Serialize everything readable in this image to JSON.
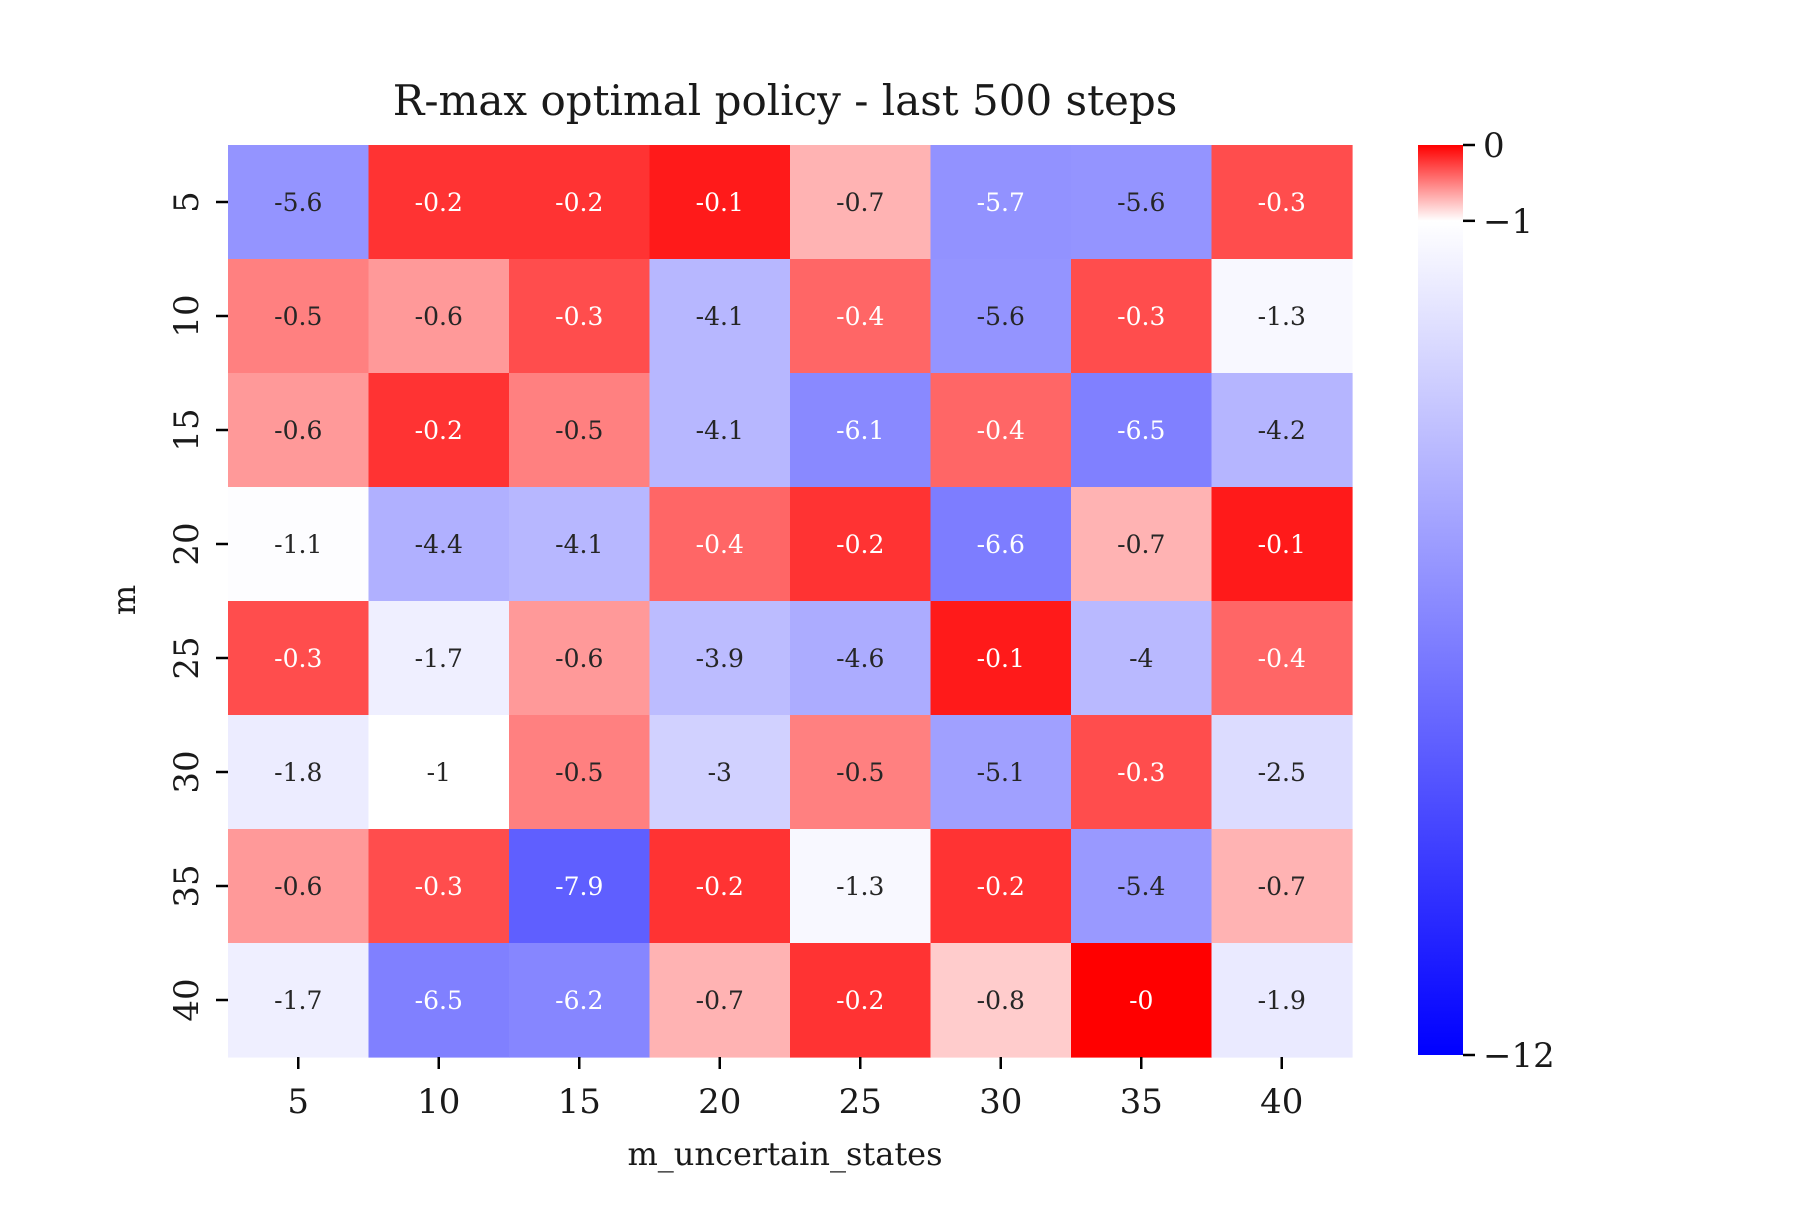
{
  "chart_data": {
    "type": "heatmap",
    "title": "R-max optimal policy - last 500 steps",
    "xlabel": "m_uncertain_states",
    "ylabel": "m",
    "x_categories": [
      "5",
      "10",
      "15",
      "20",
      "25",
      "30",
      "35",
      "40"
    ],
    "y_categories": [
      "5",
      "10",
      "15",
      "20",
      "25",
      "30",
      "35",
      "40"
    ],
    "values": [
      [
        -5.6,
        -0.2,
        -0.2,
        -0.1,
        -0.7,
        -5.7,
        -5.6,
        -0.3
      ],
      [
        -0.5,
        -0.6,
        -0.3,
        -4.1,
        -0.4,
        -5.6,
        -0.3,
        -1.3
      ],
      [
        -0.6,
        -0.2,
        -0.5,
        -4.1,
        -6.1,
        -0.4,
        -6.5,
        -4.2
      ],
      [
        -1.1,
        -4.4,
        -4.1,
        -0.4,
        -0.2,
        -6.6,
        -0.7,
        -0.1
      ],
      [
        -0.3,
        -1.7,
        -0.6,
        -3.9,
        -4.6,
        -0.1,
        -4,
        -0.4
      ],
      [
        -1.8,
        -1,
        -0.5,
        -3,
        -0.5,
        -5.1,
        -0.3,
        -2.5
      ],
      [
        -0.6,
        -0.3,
        -7.9,
        -0.2,
        -1.3,
        -0.2,
        -5.4,
        -0.7
      ],
      [
        -1.7,
        -6.5,
        -6.2,
        -0.7,
        -0.2,
        -0.8,
        0,
        -1.9
      ]
    ],
    "cell_labels": [
      [
        "-5.6",
        "-0.2",
        "-0.2",
        "-0.1",
        "-0.7",
        "-5.7",
        "-5.6",
        "-0.3"
      ],
      [
        "-0.5",
        "-0.6",
        "-0.3",
        "-4.1",
        "-0.4",
        "-5.6",
        "-0.3",
        "-1.3"
      ],
      [
        "-0.6",
        "-0.2",
        "-0.5",
        "-4.1",
        "-6.1",
        "-0.4",
        "-6.5",
        "-4.2"
      ],
      [
        "-1.1",
        "-4.4",
        "-4.1",
        "-0.4",
        "-0.2",
        "-6.6",
        "-0.7",
        "-0.1"
      ],
      [
        "-0.3",
        "-1.7",
        "-0.6",
        "-3.9",
        "-4.6",
        "-0.1",
        "-4",
        "-0.4"
      ],
      [
        "-1.8",
        "-1",
        "-0.5",
        "-3",
        "-0.5",
        "-5.1",
        "-0.3",
        "-2.5"
      ],
      [
        "-0.6",
        "-0.3",
        "-7.9",
        "-0.2",
        "-1.3",
        "-0.2",
        "-5.4",
        "-0.7"
      ],
      [
        "-1.7",
        "-6.5",
        "-6.2",
        "-0.7",
        "-0.2",
        "-0.8",
        "-0",
        "-1.9"
      ]
    ],
    "colorbar": {
      "vmin": -12,
      "vcenter": -1,
      "vmax": 0,
      "colors": {
        "low": "#0000ff",
        "center": "#ffffff",
        "high": "#ff0000"
      },
      "ticks": [
        0,
        -1,
        -12
      ],
      "tick_labels": [
        "0",
        "−1",
        "−12"
      ]
    }
  }
}
